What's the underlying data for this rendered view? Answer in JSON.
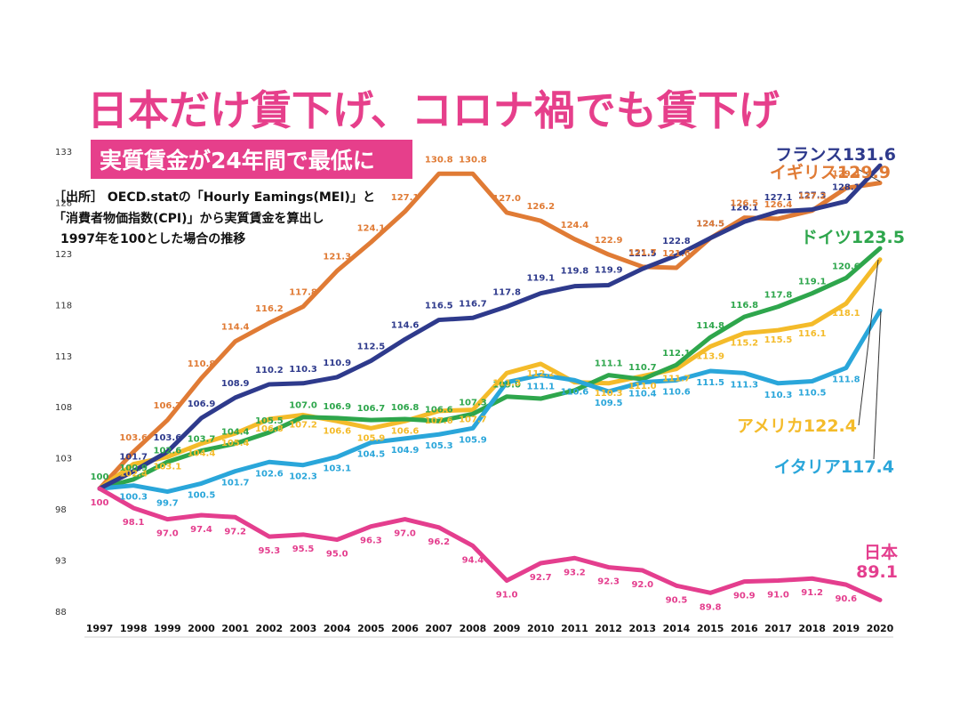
{
  "headline": "日本だけ賃下げ、コロナ禍でも賃下げ",
  "subtitle": "実質賃金が24年間で最低に",
  "source_lines": [
    "［出所］ OECD.statの「Hourly Eamings(MEI)」と",
    "「消費者物価指数(CPI)」から実質賃金を算出し",
    "1997年を100とした場合の推移"
  ],
  "colors": {
    "headline": "#e63f8b",
    "subtitle_bg": "#e63f8b"
  },
  "chart_data": {
    "type": "line",
    "x": [
      "1997",
      "1998",
      "1999",
      "2000",
      "2001",
      "2002",
      "2003",
      "2004",
      "2005",
      "2006",
      "2007",
      "2008",
      "2009",
      "2010",
      "2011",
      "2012",
      "2013",
      "2014",
      "2015",
      "2016",
      "2017",
      "2018",
      "2019",
      "2020"
    ],
    "ylim": [
      88,
      133
    ],
    "yticks": [
      88,
      93,
      98,
      103,
      108,
      113,
      118,
      123,
      128,
      133
    ],
    "grid": false,
    "series": [
      {
        "name": "フランス",
        "end_label": "フランス131.6",
        "color": "#2e3a8c",
        "values": [
          100,
          101.7,
          103.6,
          106.9,
          108.9,
          110.2,
          110.3,
          110.9,
          112.5,
          114.6,
          116.5,
          116.7,
          117.8,
          119.1,
          119.8,
          119.9,
          121.5,
          122.8,
          124.5,
          126.1,
          127.1,
          127.3,
          128.1,
          131.6
        ],
        "labels": [
          "",
          "101.7",
          "103.6",
          "106.9",
          "108.9",
          "110.2",
          "110.3",
          "110.9",
          "112.5",
          "114.6",
          "116.5",
          "116.7",
          "117.8",
          "119.1",
          "119.8",
          "119.9",
          "121.5",
          "122.8",
          "124.5",
          "126.1",
          "127.1",
          "127.3",
          "128.1",
          ""
        ]
      },
      {
        "name": "イギリス",
        "end_label": "イギリス129.9",
        "color": "#e07b35",
        "values": [
          100,
          103.6,
          106.7,
          110.8,
          114.4,
          116.2,
          117.8,
          121.3,
          124.1,
          127.1,
          130.8,
          130.8,
          127.0,
          126.2,
          124.4,
          122.9,
          121.7,
          121.6,
          124.5,
          126.5,
          126.4,
          127.2,
          129.4,
          129.9
        ],
        "labels": [
          "",
          "103.6",
          "106.7",
          "110.8",
          "114.4",
          "116.2",
          "117.8",
          "121.3",
          "124.1",
          "127.1",
          "130.8",
          "130.8",
          "127.0",
          "126.2",
          "124.4",
          "122.9",
          "121.7",
          "121.6",
          "124.5",
          "126.5",
          "126.4",
          "127.2",
          "129.4",
          ""
        ]
      },
      {
        "name": "ドイツ",
        "end_label": "ドイツ123.5",
        "color": "#2ea64c",
        "values": [
          100,
          100.9,
          102.6,
          103.7,
          104.4,
          105.5,
          107.0,
          106.9,
          106.7,
          106.8,
          106.6,
          107.3,
          109.0,
          108.8,
          109.6,
          111.1,
          110.7,
          112.1,
          114.8,
          116.8,
          117.8,
          119.1,
          120.6,
          123.5
        ],
        "labels": [
          "100",
          "100.9",
          "102.6",
          "103.7",
          "104.4",
          "105.5",
          "107.0",
          "106.9",
          "106.7",
          "106.8",
          "106.6",
          "107.3",
          "109.0",
          "",
          "",
          "111.1",
          "110.7",
          "112.1",
          "114.8",
          "116.8",
          "117.8",
          "119.1",
          "120.6",
          ""
        ]
      },
      {
        "name": "アメリカ",
        "end_label": "アメリカ122.4",
        "color": "#f4bb2a",
        "values": [
          100,
          102.4,
          103.1,
          104.4,
          105.4,
          106.8,
          107.2,
          106.6,
          105.9,
          106.6,
          107.6,
          107.7,
          111.3,
          112.2,
          110.4,
          110.3,
          111.0,
          111.7,
          113.9,
          115.2,
          115.5,
          116.1,
          118.1,
          122.4
        ],
        "labels": [
          "",
          "102.4",
          "103.1",
          "104.4",
          "105.4",
          "106.8",
          "107.2",
          "106.6",
          "105.9",
          "106.6",
          "107.6",
          "107.7",
          "111.3",
          "112.2",
          "",
          "110.3",
          "111.0",
          "111.7",
          "113.9",
          "115.2",
          "115.5",
          "116.1",
          "118.1",
          ""
        ]
      },
      {
        "name": "イタリア",
        "end_label": "イタリア117.4",
        "color": "#2aa6da",
        "values": [
          100,
          100.3,
          99.7,
          100.5,
          101.7,
          102.6,
          102.3,
          103.1,
          104.5,
          104.9,
          105.3,
          105.9,
          110.4,
          111.1,
          110.6,
          109.5,
          110.4,
          110.6,
          111.5,
          111.3,
          110.3,
          110.5,
          111.8,
          117.4
        ],
        "labels": [
          "",
          "100.3",
          "99.7",
          "100.5",
          "101.7",
          "102.6",
          "102.3",
          "103.1",
          "104.5",
          "104.9",
          "105.3",
          "105.9",
          "",
          "111.1",
          "110.6",
          "109.5",
          "110.4",
          "110.6",
          "111.5",
          "111.3",
          "110.3",
          "110.5",
          "111.8",
          ""
        ]
      },
      {
        "name": "日本",
        "end_label": "日本\n89.1",
        "color": "#e43e8e",
        "values": [
          100,
          98.1,
          97.0,
          97.4,
          97.2,
          95.3,
          95.5,
          95.0,
          96.3,
          97.0,
          96.2,
          94.4,
          91.0,
          92.7,
          93.2,
          92.3,
          92.0,
          90.5,
          89.8,
          90.9,
          91.0,
          91.2,
          90.6,
          89.1
        ],
        "labels": [
          "100",
          "98.1",
          "97.0",
          "97.4",
          "97.2",
          "95.3",
          "95.5",
          "95.0",
          "96.3",
          "97.0",
          "96.2",
          "94.4",
          "91.0",
          "92.7",
          "93.2",
          "92.3",
          "92.0",
          "90.5",
          "89.8",
          "90.9",
          "91.0",
          "91.2",
          "90.6",
          ""
        ]
      }
    ]
  }
}
